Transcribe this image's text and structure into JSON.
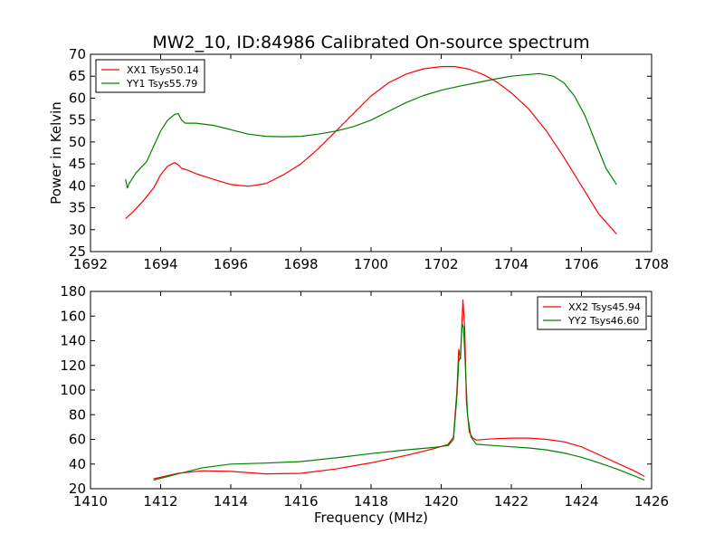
{
  "figure": {
    "title": "MW2_10, ID:84986 Calibrated On-source spectrum"
  },
  "chart_data": [
    {
      "type": "line",
      "title": "MW2_10, ID:84986 Calibrated On-source spectrum",
      "xlabel": "",
      "ylabel": "Power in Kelvin",
      "xlim": [
        1692,
        1708
      ],
      "ylim": [
        25,
        70
      ],
      "xticks": [
        1692,
        1694,
        1696,
        1698,
        1700,
        1702,
        1704,
        1706,
        1708
      ],
      "yticks": [
        25,
        30,
        35,
        40,
        45,
        50,
        55,
        60,
        65,
        70
      ],
      "grid": false,
      "legend_position": "top-left",
      "series": [
        {
          "name": "XX1 Tsys50.14",
          "color": "#ff0000",
          "x": [
            1693.0,
            1693.2,
            1693.5,
            1693.8,
            1694.0,
            1694.2,
            1694.4,
            1694.5,
            1694.6,
            1694.8,
            1695.0,
            1695.5,
            1696.0,
            1696.5,
            1697.0,
            1697.5,
            1698.0,
            1698.5,
            1699.0,
            1699.5,
            1700.0,
            1700.5,
            1701.0,
            1701.5,
            1702.0,
            1702.4,
            1702.8,
            1703.2,
            1703.6,
            1704.0,
            1704.5,
            1705.0,
            1705.5,
            1706.0,
            1706.5,
            1707.0
          ],
          "y": [
            32.5,
            34.0,
            36.5,
            39.5,
            42.5,
            44.5,
            45.3,
            44.8,
            44.0,
            43.5,
            42.8,
            41.5,
            40.3,
            39.9,
            40.5,
            42.5,
            45.0,
            48.5,
            52.5,
            56.5,
            60.5,
            63.5,
            65.5,
            66.7,
            67.2,
            67.2,
            66.6,
            65.4,
            63.6,
            61.2,
            57.5,
            52.5,
            46.5,
            40.0,
            33.5,
            29.0
          ]
        },
        {
          "name": "YY1 Tsys55.79",
          "color": "#008000",
          "x": [
            1693.0,
            1693.05,
            1693.1,
            1693.3,
            1693.6,
            1693.8,
            1694.0,
            1694.2,
            1694.4,
            1694.5,
            1694.6,
            1694.7,
            1695.0,
            1695.5,
            1696.0,
            1696.5,
            1697.0,
            1697.5,
            1698.0,
            1698.5,
            1699.0,
            1699.5,
            1700.0,
            1700.5,
            1701.0,
            1701.5,
            1702.0,
            1702.5,
            1703.0,
            1703.5,
            1704.0,
            1704.5,
            1704.8,
            1705.2,
            1705.5,
            1705.8,
            1706.1,
            1706.4,
            1706.7,
            1707.0
          ],
          "y": [
            41.5,
            39.5,
            40.5,
            43.0,
            45.5,
            49.0,
            52.5,
            55.0,
            56.3,
            56.5,
            55.0,
            54.3,
            54.3,
            53.8,
            52.8,
            51.8,
            51.3,
            51.2,
            51.3,
            51.8,
            52.5,
            53.5,
            55.0,
            57.0,
            59.0,
            60.6,
            61.8,
            62.7,
            63.5,
            64.3,
            65.0,
            65.4,
            65.6,
            65.0,
            63.5,
            60.5,
            56.0,
            50.0,
            44.0,
            40.3
          ]
        }
      ]
    },
    {
      "type": "line",
      "title": "",
      "xlabel": "Frequency (MHz)",
      "ylabel": "",
      "xlim": [
        1410,
        1426
      ],
      "ylim": [
        20,
        180
      ],
      "xticks": [
        1410,
        1412,
        1414,
        1416,
        1418,
        1420,
        1422,
        1424,
        1426
      ],
      "yticks": [
        20,
        40,
        60,
        80,
        100,
        120,
        140,
        160,
        180
      ],
      "grid": false,
      "legend_position": "top-right",
      "series": [
        {
          "name": "XX2 Tsys45.94",
          "color": "#ff0000",
          "x": [
            1411.8,
            1412.5,
            1413.2,
            1414.0,
            1415.0,
            1416.0,
            1417.0,
            1418.0,
            1419.0,
            1419.8,
            1420.2,
            1420.35,
            1420.45,
            1420.5,
            1420.55,
            1420.62,
            1420.67,
            1420.72,
            1420.8,
            1420.9,
            1421.0,
            1421.5,
            1422.0,
            1422.5,
            1423.0,
            1423.5,
            1424.0,
            1424.5,
            1425.0,
            1425.5,
            1425.8
          ],
          "y": [
            28.0,
            32.5,
            34.5,
            34.0,
            32.0,
            32.5,
            36.0,
            41.0,
            47.0,
            52.5,
            56.0,
            62.0,
            100.0,
            133.0,
            125.0,
            173.0,
            150.0,
            90.0,
            66.0,
            61.0,
            59.5,
            60.5,
            61.0,
            61.0,
            60.0,
            58.0,
            54.0,
            47.5,
            41.0,
            34.5,
            30.0
          ]
        },
        {
          "name": "YY2 Tsys46.60",
          "color": "#008000",
          "x": [
            1411.8,
            1412.5,
            1413.2,
            1414.0,
            1415.0,
            1416.0,
            1417.0,
            1418.0,
            1419.0,
            1419.8,
            1420.2,
            1420.35,
            1420.45,
            1420.5,
            1420.55,
            1420.6,
            1420.64,
            1420.69,
            1420.75,
            1420.85,
            1421.0,
            1421.5,
            1422.0,
            1422.5,
            1423.0,
            1423.5,
            1424.0,
            1424.5,
            1425.0,
            1425.5,
            1425.8
          ],
          "y": [
            27.0,
            32.0,
            37.0,
            40.0,
            40.8,
            42.0,
            45.0,
            48.5,
            51.5,
            53.5,
            55.0,
            60.0,
            95.0,
            123.0,
            128.0,
            154.0,
            150.0,
            120.0,
            80.0,
            62.0,
            56.0,
            55.0,
            54.0,
            53.0,
            51.5,
            49.0,
            45.5,
            41.0,
            36.0,
            30.5,
            27.0
          ]
        }
      ]
    }
  ]
}
